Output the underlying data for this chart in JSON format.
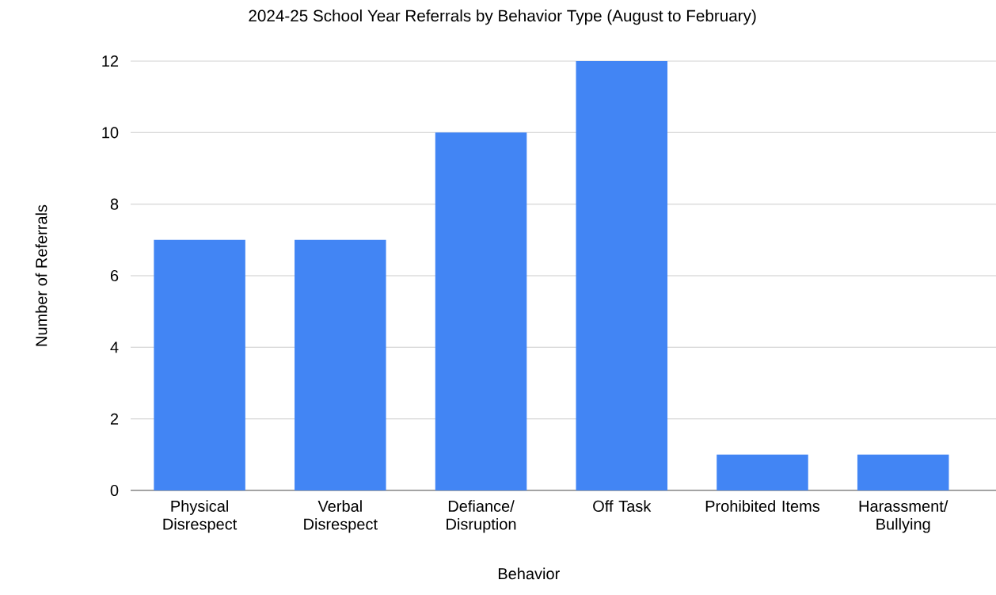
{
  "chart_data": {
    "type": "bar",
    "title": "2024-25 School Year Referrals by Behavior Type (August to February)",
    "xlabel": "Behavior",
    "ylabel": "Number of Referrals",
    "categories": [
      "Physical Disrespect",
      "Verbal Disrespect",
      "Defiance/ Disruption",
      "Off Task",
      "Prohibited Items",
      "Harassment/ Bullying"
    ],
    "values": [
      7,
      7,
      10,
      12,
      1,
      1
    ],
    "color": "#4285f4",
    "ylim": [
      0,
      12
    ],
    "yticks": [
      0,
      2,
      4,
      6,
      8,
      10,
      12
    ],
    "grid": "y"
  }
}
